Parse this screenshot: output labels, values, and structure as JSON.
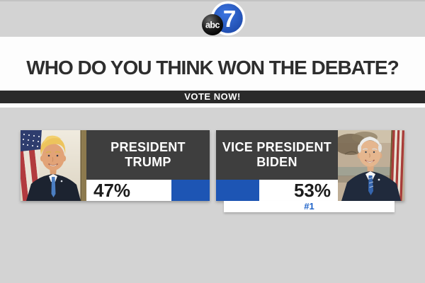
{
  "station": {
    "logo_abc": "abc",
    "logo_7": "7"
  },
  "headline": "WHO DO YOU THINK WON THE DEBATE?",
  "vote_banner": "VOTE NOW!",
  "poll": {
    "candidates": [
      {
        "name_line1": "PRESIDENT",
        "name_line2": "TRUMP",
        "percent_label": "47%",
        "value": 47,
        "photo": "trump-portrait"
      },
      {
        "name_line1": "VICE PRESIDENT",
        "name_line2": "BIDEN",
        "percent_label": "53%",
        "value": 53,
        "rank": "#1",
        "photo": "biden-portrait"
      }
    ]
  },
  "colors": {
    "accent_blue": "#1d55b4",
    "rank_blue": "#1d62c8",
    "banner_dark": "#2a2a2a",
    "name_box_dark": "#3e3e3e",
    "page_bg": "#d3d3d3",
    "band_white": "#fdfdfd"
  },
  "chart_data": {
    "type": "bar",
    "title": "WHO DO YOU THINK WON THE DEBATE?",
    "categories": [
      "President Trump",
      "Vice President Biden"
    ],
    "values": [
      47,
      53
    ],
    "value_unit": "%",
    "annotations": [
      "#1 badge on Vice President Biden"
    ],
    "ylim": [
      0,
      100
    ]
  }
}
